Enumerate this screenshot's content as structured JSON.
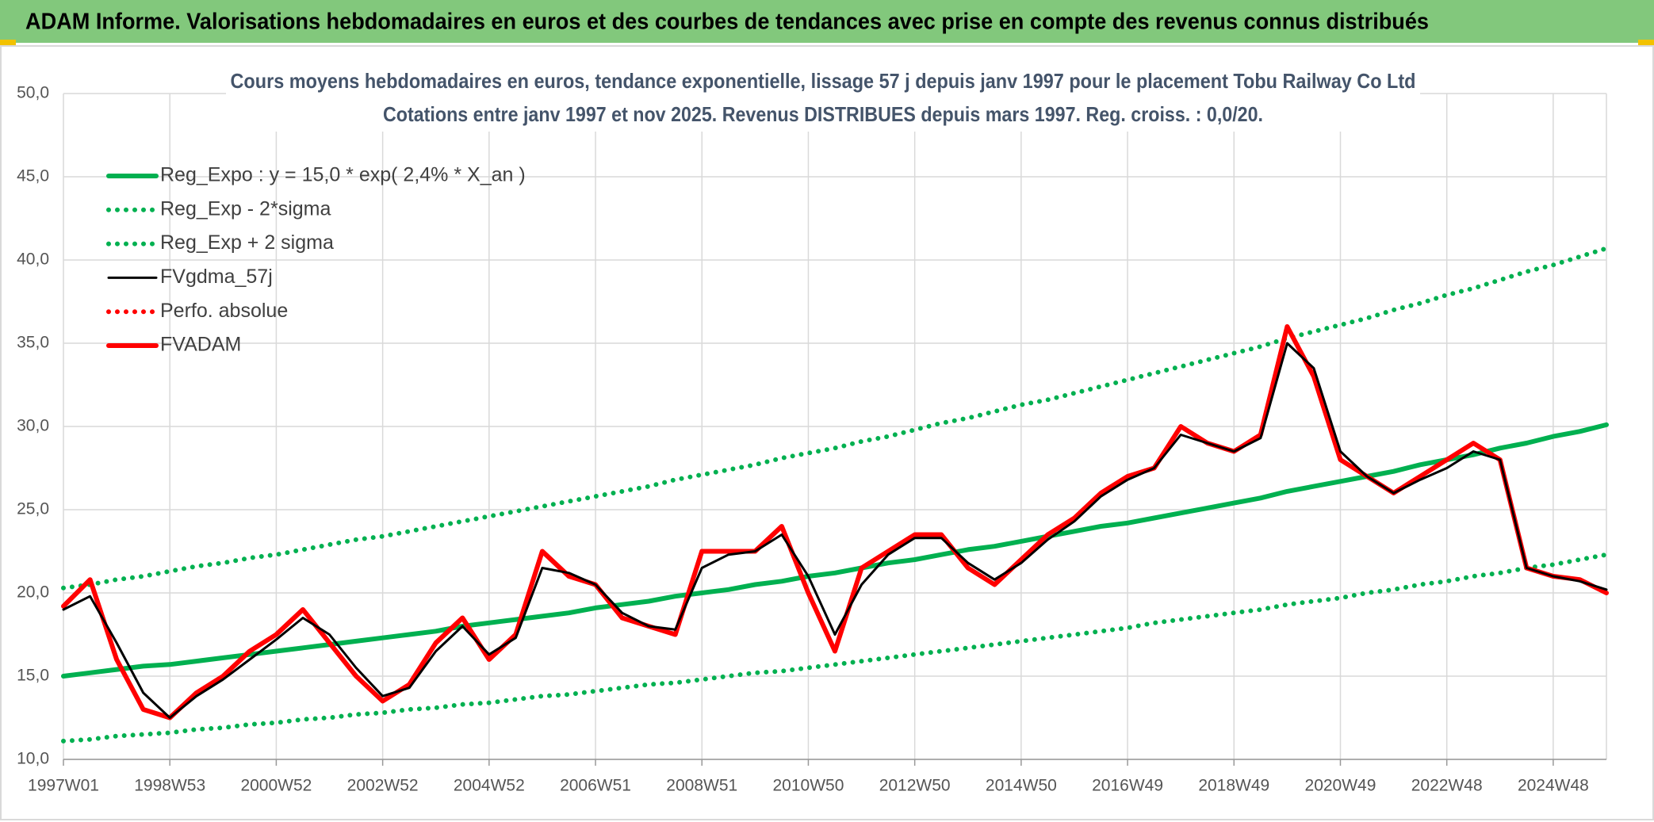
{
  "header": {
    "title": "ADAM Informe. Valorisations hebdomadaires en euros et des courbes de tendances avec prise en compte des revenus connus distribués"
  },
  "chart_data": {
    "type": "line",
    "title": "Cours moyens hebdomadaires en euros, tendance exponentielle, lissage 57 j depuis janv 1997 pour le placement Tobu Railway Co Ltd",
    "subtitle": "Cotations entre janv 1997 et nov 2025. Revenus DISTRIBUES depuis mars 1997. Reg. croiss. : 0,0/20.",
    "categories": [
      "1997W01",
      null,
      null,
      null,
      "1998W53",
      null,
      null,
      null,
      "2000W52",
      null,
      null,
      null,
      "2002W52",
      null,
      null,
      null,
      "2004W52",
      null,
      null,
      null,
      "2006W51",
      null,
      null,
      null,
      "2008W51",
      null,
      null,
      null,
      "2010W50",
      null,
      null,
      null,
      "2012W50",
      null,
      null,
      null,
      "2014W50",
      null,
      null,
      null,
      "2016W49",
      null,
      null,
      null,
      "2018W49",
      null,
      null,
      null,
      "2020W49",
      null,
      null,
      null,
      "2022W48",
      null,
      null,
      null,
      "2024W48",
      null,
      null
    ],
    "ylim": [
      10,
      50
    ],
    "yticks": [
      {
        "value": 10,
        "label": "10,0"
      },
      {
        "value": 15,
        "label": "15,0"
      },
      {
        "value": 20,
        "label": "20,0"
      },
      {
        "value": 25,
        "label": "25,0"
      },
      {
        "value": 30,
        "label": "30,0"
      },
      {
        "value": 35,
        "label": "35,0"
      },
      {
        "value": 40,
        "label": "40,0"
      },
      {
        "value": 45,
        "label": "45,0"
      },
      {
        "value": 50,
        "label": "50,0"
      }
    ],
    "grid": true,
    "legend": "upper left",
    "series": [
      {
        "name": "Reg_Expo : y = 15,0 * exp( 2,4% *  X_an )",
        "color": "#00b050",
        "style": "solid",
        "values": [
          15.0,
          15.2,
          15.4,
          15.6,
          15.7,
          15.9,
          16.1,
          16.3,
          16.5,
          16.7,
          16.9,
          17.1,
          17.3,
          17.5,
          17.7,
          18.0,
          18.2,
          18.4,
          18.6,
          18.8,
          19.1,
          19.3,
          19.5,
          19.8,
          20.0,
          20.2,
          20.5,
          20.7,
          21.0,
          21.2,
          21.5,
          21.8,
          22.0,
          22.3,
          22.6,
          22.8,
          23.1,
          23.4,
          23.7,
          24.0,
          24.2,
          24.5,
          24.8,
          25.1,
          25.4,
          25.7,
          26.1,
          26.4,
          26.7,
          27.0,
          27.3,
          27.7,
          28.0,
          28.3,
          28.7,
          29.0,
          29.4,
          29.7,
          30.1
        ]
      },
      {
        "name": "Reg_Exp - 2*sigma",
        "color": "#00b050",
        "style": "dotted",
        "values": [
          11.1,
          11.2,
          11.4,
          11.5,
          11.6,
          11.8,
          11.9,
          12.1,
          12.2,
          12.4,
          12.5,
          12.7,
          12.8,
          13.0,
          13.1,
          13.3,
          13.4,
          13.6,
          13.8,
          13.9,
          14.1,
          14.3,
          14.5,
          14.6,
          14.8,
          15.0,
          15.2,
          15.3,
          15.5,
          15.7,
          15.9,
          16.1,
          16.3,
          16.5,
          16.7,
          16.9,
          17.1,
          17.3,
          17.5,
          17.7,
          17.9,
          18.2,
          18.4,
          18.6,
          18.8,
          19.0,
          19.3,
          19.5,
          19.7,
          20.0,
          20.2,
          20.5,
          20.7,
          21.0,
          21.2,
          21.5,
          21.7,
          22.0,
          22.3
        ]
      },
      {
        "name": "Reg_Exp + 2 sigma",
        "color": "#00b050",
        "style": "dotted",
        "values": [
          20.3,
          20.5,
          20.8,
          21.0,
          21.3,
          21.6,
          21.8,
          22.1,
          22.3,
          22.6,
          22.9,
          23.2,
          23.4,
          23.7,
          24.0,
          24.3,
          24.6,
          24.9,
          25.2,
          25.5,
          25.8,
          26.1,
          26.4,
          26.8,
          27.1,
          27.4,
          27.7,
          28.1,
          28.4,
          28.7,
          29.1,
          29.4,
          29.8,
          30.2,
          30.5,
          30.9,
          31.3,
          31.6,
          32.0,
          32.4,
          32.8,
          33.2,
          33.6,
          34.0,
          34.4,
          34.8,
          35.3,
          35.7,
          36.1,
          36.5,
          37.0,
          37.4,
          37.9,
          38.3,
          38.8,
          39.3,
          39.7,
          40.2,
          40.7
        ]
      },
      {
        "name": "FVgdma_57j",
        "color": "#000000",
        "style": "solid",
        "values": [
          19.0,
          19.8,
          17.0,
          14.0,
          12.5,
          13.8,
          14.8,
          16.0,
          17.2,
          18.5,
          17.5,
          15.5,
          13.8,
          14.3,
          16.5,
          18.0,
          16.3,
          17.3,
          21.5,
          21.2,
          20.5,
          18.8,
          18.0,
          17.8,
          21.5,
          22.3,
          22.5,
          23.5,
          21.0,
          17.5,
          20.5,
          22.3,
          23.3,
          23.3,
          21.8,
          20.8,
          21.8,
          23.2,
          24.3,
          25.8,
          26.8,
          27.5,
          29.5,
          29.0,
          28.5,
          29.3,
          35.0,
          33.5,
          28.5,
          27.0,
          26.0,
          26.8,
          27.5,
          28.5,
          28.0,
          21.5,
          21.0,
          20.7,
          20.2
        ]
      },
      {
        "name": "Perfo. absolue",
        "color": "#ff0000",
        "style": "dotted",
        "values": [
          null,
          null,
          null,
          null,
          null,
          null,
          null,
          null,
          null,
          null,
          null,
          null,
          null,
          null,
          null,
          null,
          null,
          null,
          null,
          null,
          null,
          null,
          null,
          null,
          null,
          null,
          null,
          null,
          null,
          null,
          null,
          null,
          null,
          null,
          null,
          null,
          null,
          null,
          null,
          null,
          null,
          null,
          null,
          null,
          null,
          null,
          null,
          null,
          null,
          null,
          null,
          null,
          null,
          null,
          null,
          null,
          null,
          null,
          null
        ]
      },
      {
        "name": "FVADAM",
        "color": "#ff0000",
        "style": "solid",
        "values": [
          19.2,
          20.8,
          16.0,
          13.0,
          12.5,
          14.0,
          15.0,
          16.5,
          17.5,
          19.0,
          17.0,
          15.0,
          13.5,
          14.5,
          17.0,
          18.5,
          16.0,
          17.5,
          22.5,
          21.0,
          20.5,
          18.5,
          18.0,
          17.5,
          22.5,
          22.5,
          22.5,
          24.0,
          20.0,
          16.5,
          21.5,
          22.5,
          23.5,
          23.5,
          21.5,
          20.5,
          22.0,
          23.5,
          24.5,
          26.0,
          27.0,
          27.5,
          30.0,
          29.0,
          28.5,
          29.5,
          36.0,
          33.0,
          28.0,
          27.0,
          26.0,
          27.0,
          28.0,
          29.0,
          28.0,
          21.5,
          21.0,
          20.8,
          20.0
        ]
      }
    ]
  }
}
